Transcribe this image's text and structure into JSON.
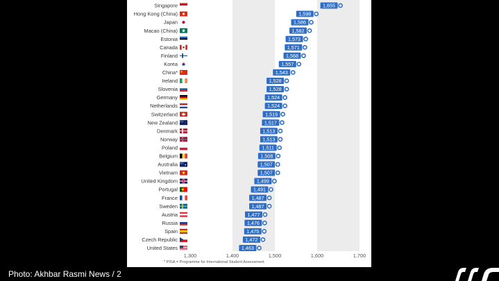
{
  "chart_data": {
    "type": "bar",
    "orientation": "horizontal",
    "categories": [
      "Singapore",
      "Hong Kong (China)",
      "Japan",
      "Macao (China)",
      "Estonia",
      "Canada",
      "Finland",
      "Korea",
      "China*",
      "Ireland",
      "Slovenia",
      "Germany",
      "Netherlands",
      "Switzerland",
      "New Zealand",
      "Denmark",
      "Norway",
      "Poland",
      "Belgium",
      "Australia",
      "Vietnam",
      "United Kingdom",
      "Portugal",
      "France",
      "Sweden",
      "Austria",
      "Russia",
      "Spain",
      "Czech Republic",
      "United States"
    ],
    "values": [
      1655,
      1598,
      1586,
      1582,
      1573,
      1571,
      1568,
      1557,
      1543,
      1528,
      1528,
      1524,
      1524,
      1519,
      1517,
      1513,
      1513,
      1511,
      1508,
      1507,
      1507,
      1499,
      1491,
      1487,
      1487,
      1477,
      1476,
      1475,
      1472,
      1463
    ],
    "value_labels": [
      "1,655",
      "1,598",
      "1,586",
      "1,582",
      "1,573",
      "1,571",
      "1,568",
      "1,557",
      "1,543",
      "1,528",
      "1,528",
      "1,524",
      "1,524",
      "1,519",
      "1,517",
      "1,513",
      "1,513",
      "1,511",
      "1,508",
      "1,507",
      "1,507",
      "1,499",
      "1,491",
      "1,487",
      "1,487",
      "1,477",
      "1,476",
      "1,475",
      "1,472",
      "1,463"
    ],
    "xlim": [
      1300,
      1700
    ],
    "ticks": [
      1300,
      1400,
      1500,
      1600,
      1700
    ],
    "tick_labels": [
      "1,300",
      "1,400",
      "1,500",
      "1,600",
      "1,700"
    ],
    "grid": "vertical alternating bands",
    "bar_color": "#2f6ec4",
    "band_color": "#ececec",
    "marker_color": "#2f6ec4",
    "flags": [
      "singapore",
      "hong-kong",
      "japan",
      "macao",
      "estonia",
      "canada",
      "finland",
      "korea",
      "china",
      "ireland",
      "slovenia",
      "germany",
      "netherlands",
      "switzerland",
      "new-zealand",
      "denmark",
      "norway",
      "poland",
      "belgium",
      "australia",
      "vietnam",
      "united-kingdom",
      "portugal",
      "france",
      "sweden",
      "austria",
      "russia",
      "spain",
      "czech-republic",
      "united-states"
    ]
  },
  "footnote": "*  PISA = Programme for International Student Assessment",
  "caption": "Photo: Akhbar Rasmi News / 2"
}
